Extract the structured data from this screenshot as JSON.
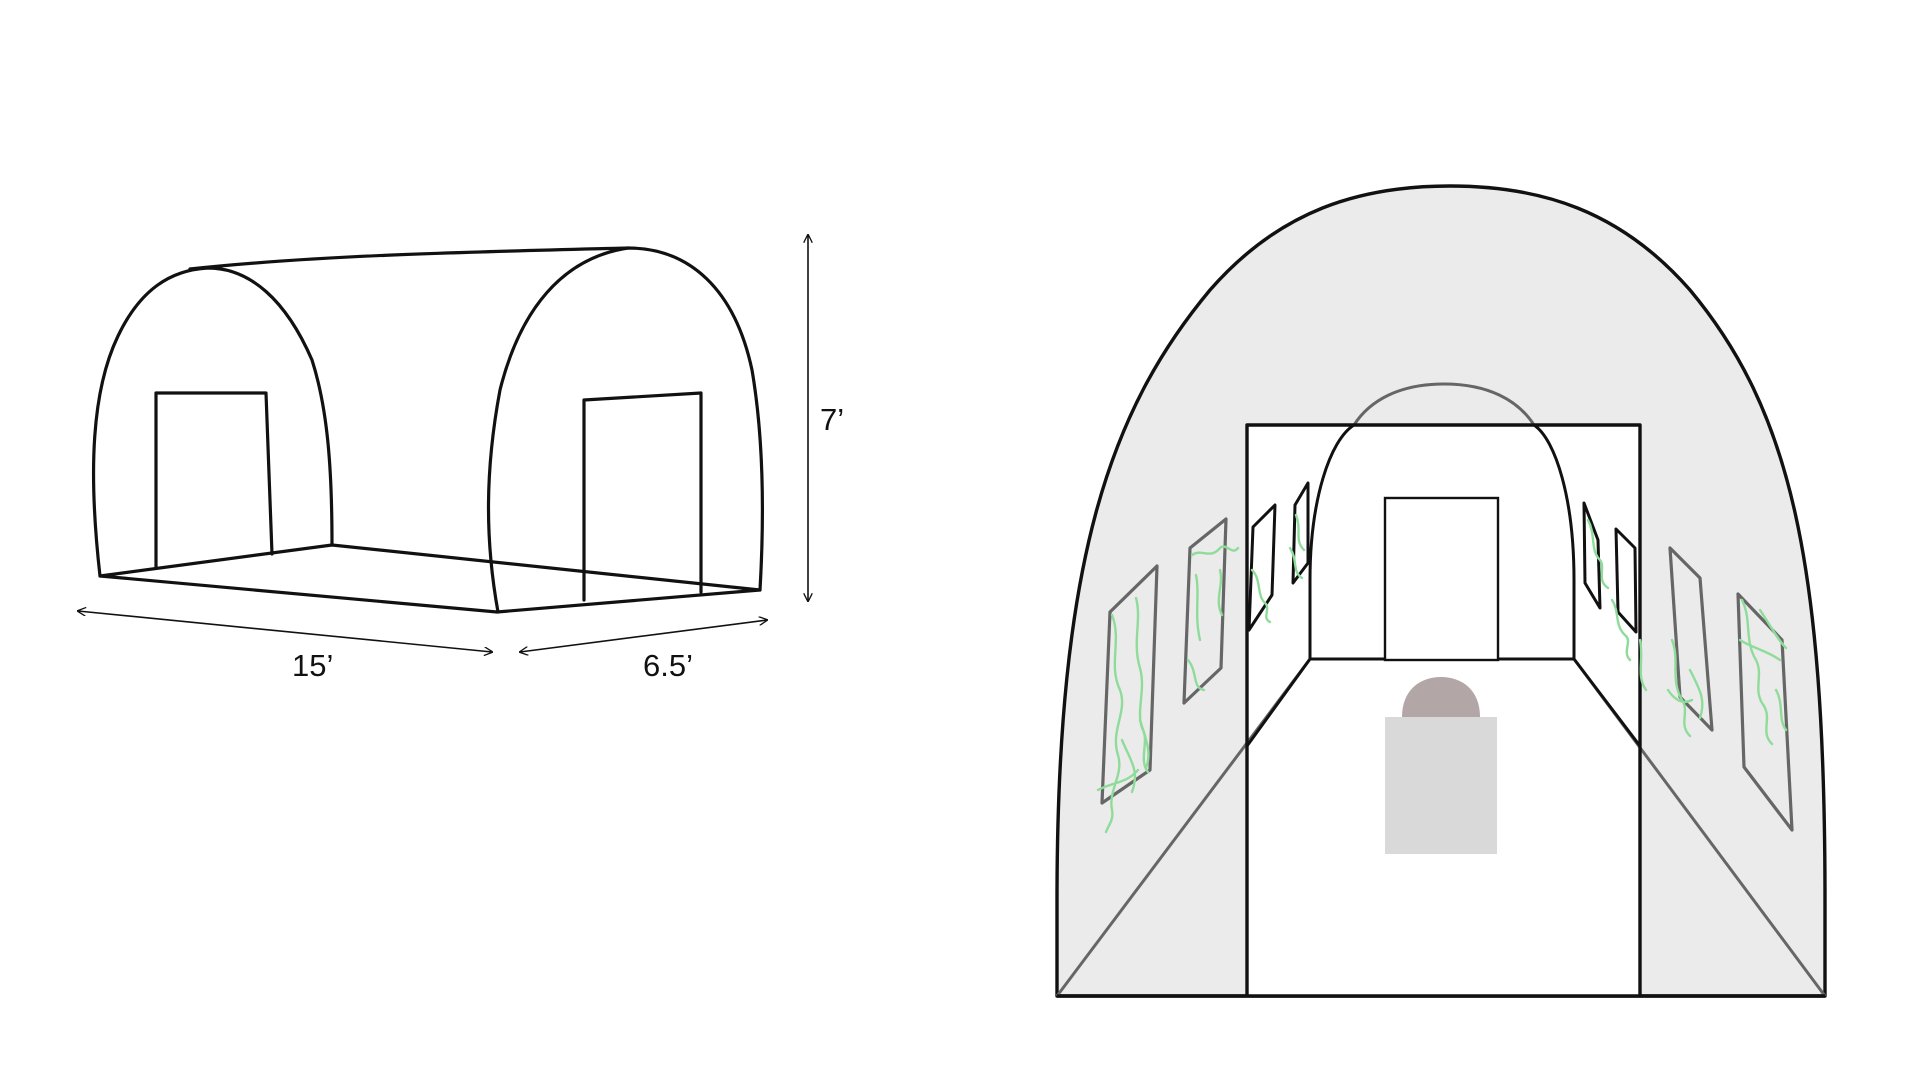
{
  "dimensions": {
    "length": "15’",
    "width": "6.5’",
    "height": "7’"
  },
  "colors": {
    "line": "#111111",
    "inner_line": "#666666",
    "shell_fill": "#ebebeb",
    "plant": "#8fdc9a",
    "table": "#d9d9d9",
    "pot": "#b2a6a6"
  }
}
